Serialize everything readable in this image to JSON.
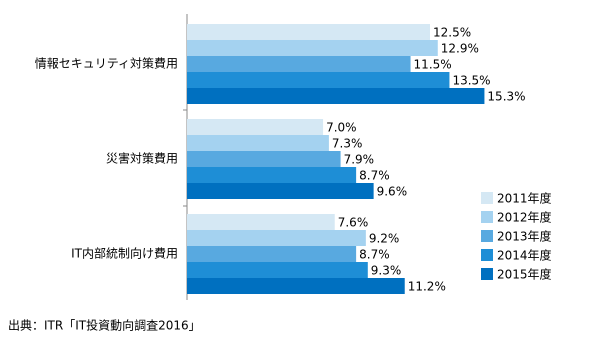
{
  "chart_data": {
    "type": "bar",
    "orientation": "horizontal",
    "categories": [
      "情報セキュリティ対策費用",
      "災害対策費用",
      "IT内部統制向け費用"
    ],
    "series": [
      {
        "name": "2011年度",
        "color": "#d5e8f4",
        "values": [
          12.5,
          7.0,
          7.6
        ],
        "value_labels": [
          "12.5%",
          "7.0%",
          "7.6%"
        ]
      },
      {
        "name": "2012年度",
        "color": "#a4d2f0",
        "values": [
          12.9,
          7.3,
          9.2
        ],
        "value_labels": [
          "12.9%",
          "7.3%",
          "9.2%"
        ]
      },
      {
        "name": "2013年度",
        "color": "#58a9e0",
        "values": [
          11.5,
          7.9,
          8.7
        ],
        "value_labels": [
          "11.5%",
          "7.9%",
          "8.7%"
        ]
      },
      {
        "name": "2014年度",
        "color": "#1e8ed6",
        "values": [
          13.5,
          8.7,
          9.3
        ],
        "value_labels": [
          "13.5%",
          "8.7%",
          "9.3%"
        ]
      },
      {
        "name": "2015年度",
        "color": "#0070c0",
        "values": [
          15.3,
          9.6,
          11.2
        ],
        "value_labels": [
          "15.3%",
          "9.6%",
          "11.2%"
        ]
      }
    ],
    "source": "出典：ITR「IT投資動向調査2016」"
  }
}
